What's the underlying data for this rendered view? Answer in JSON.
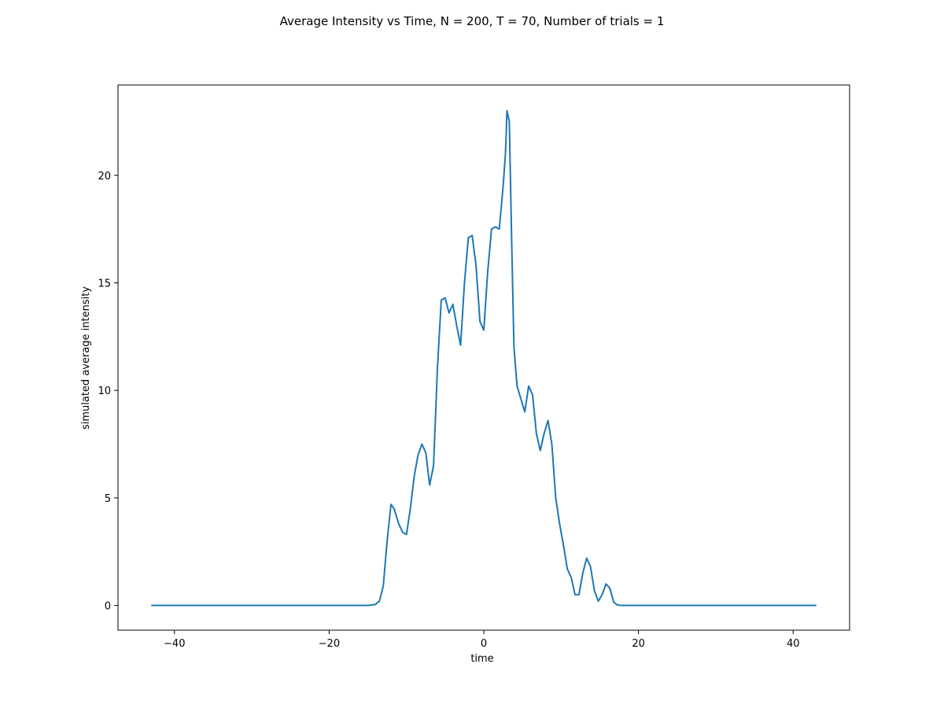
{
  "chart_data": {
    "type": "line",
    "title": "Average Intensity vs Time, N = 200, T = 70, Number of trials = 1",
    "xlabel": "time",
    "ylabel": "simulated average intensity",
    "xlim": [
      -47.3,
      47.3
    ],
    "ylim": [
      -1.15,
      24.2
    ],
    "xticks": [
      -40,
      -20,
      0,
      20,
      40
    ],
    "yticks": [
      0,
      5,
      10,
      15,
      20
    ],
    "xtick_labels": [
      "−40",
      "−20",
      "0",
      "20",
      "40"
    ],
    "ytick_labels": [
      "0",
      "5",
      "10",
      "15",
      "20"
    ],
    "grid": false,
    "legend": "none",
    "line_color": "#1f77b4",
    "series": [
      {
        "x": [
          -43,
          -20,
          -15,
          -14,
          -13.5,
          -13,
          -12.5,
          -12,
          -11.6,
          -11,
          -10.5,
          -10,
          -9.5,
          -9,
          -8.5,
          -8,
          -7.5,
          -7,
          -6.5,
          -6,
          -5.5,
          -5,
          -4.5,
          -4,
          -3.5,
          -3,
          -2.5,
          -2,
          -1.5,
          -1,
          -0.5,
          0,
          0.5,
          1,
          1.5,
          2,
          2.5,
          2.8,
          3,
          3.3,
          3.6,
          3.9,
          4.3,
          4.8,
          5.3,
          5.8,
          6.3,
          6.8,
          7.3,
          7.8,
          8.3,
          8.8,
          9.3,
          9.8,
          10.3,
          10.8,
          11.3,
          11.8,
          12.3,
          12.8,
          13.3,
          13.8,
          14.3,
          14.8,
          15.3,
          15.8,
          16.3,
          16.8,
          17.3,
          17.8,
          18.3,
          19,
          43
        ],
        "y": [
          0,
          0,
          0,
          0.05,
          0.2,
          0.9,
          3.0,
          4.7,
          4.5,
          3.8,
          3.4,
          3.3,
          4.5,
          6.0,
          7.0,
          7.5,
          7.1,
          5.6,
          6.5,
          11.0,
          14.2,
          14.3,
          13.6,
          14.0,
          13.0,
          12.1,
          15.0,
          17.1,
          17.2,
          15.8,
          13.2,
          12.8,
          15.5,
          17.5,
          17.6,
          17.5,
          19.5,
          21.0,
          23.0,
          22.5,
          17.0,
          12.0,
          10.2,
          9.6,
          9.0,
          10.2,
          9.8,
          8.0,
          7.2,
          8.0,
          8.6,
          7.5,
          5.0,
          3.8,
          2.8,
          1.7,
          1.3,
          0.5,
          0.5,
          1.5,
          2.2,
          1.8,
          0.7,
          0.2,
          0.5,
          1.0,
          0.8,
          0.15,
          0.02,
          0,
          0,
          0,
          0
        ]
      }
    ]
  }
}
